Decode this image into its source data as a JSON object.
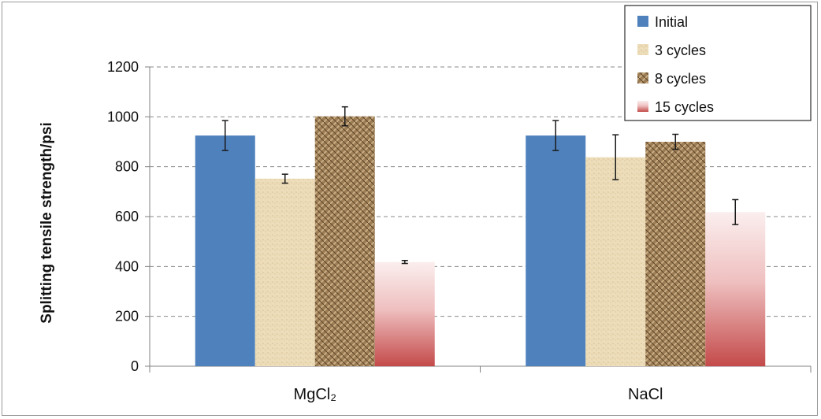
{
  "chart_data": {
    "type": "bar",
    "title": "",
    "xlabel": "",
    "ylabel": "Splitting tensile strength/psi",
    "ylim": [
      0,
      1200
    ],
    "yticks": [
      0,
      200,
      400,
      600,
      800,
      1000,
      1200
    ],
    "grid": "horizontal dashed",
    "legend_position": "top-right",
    "categories": [
      "MgCl₂",
      "NaCl"
    ],
    "series": [
      {
        "name": "Initial",
        "color": "#4f81bd",
        "pattern": "solid",
        "values": [
          925,
          925
        ],
        "errors": [
          60,
          60
        ]
      },
      {
        "name": "3 cycles",
        "color": "#e9d5ad",
        "pattern": "sand",
        "values": [
          752,
          838
        ],
        "errors": [
          18,
          90
        ]
      },
      {
        "name": "8 cycles",
        "color": "#8c6d45",
        "pattern": "weave",
        "values": [
          1002,
          900
        ],
        "errors": [
          38,
          30
        ]
      },
      {
        "name": "15 cycles",
        "color": "#c0504d",
        "pattern": "gradient",
        "values": [
          418,
          618
        ],
        "errors": [
          6,
          50
        ]
      }
    ]
  }
}
